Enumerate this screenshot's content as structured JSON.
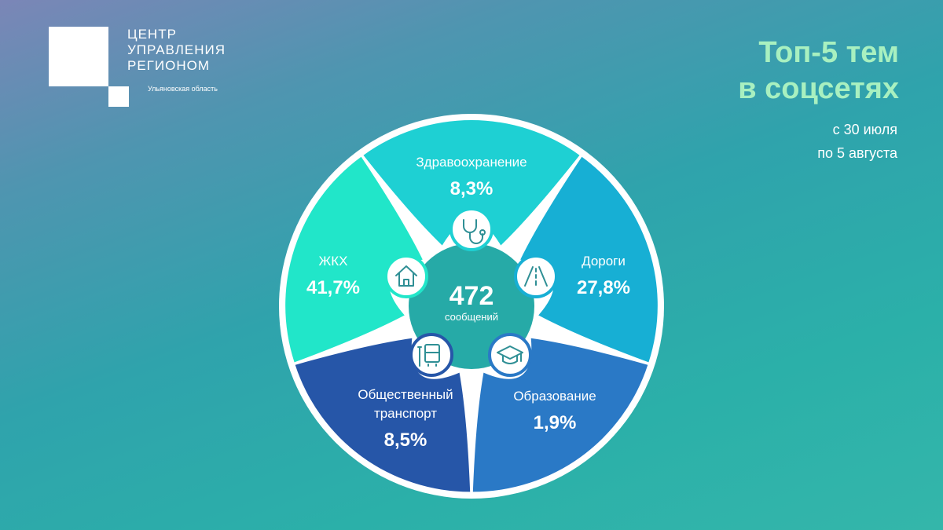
{
  "logo": {
    "line1": "ЦЕНТР",
    "line2": "УПРАВЛЕНИЯ",
    "line3": "РЕГИОНОМ",
    "region": "Ульяновская область"
  },
  "header": {
    "title_line1": "Топ-5 тем",
    "title_line2": "в соцсетях",
    "period_line1": "с 30 июля",
    "period_line2": "по 5 августа"
  },
  "chart_data": {
    "type": "pie",
    "total_value": "472",
    "total_label": "сообщений",
    "slices": [
      {
        "label_lines": [
          "Здравоохранение"
        ],
        "value": "8,3%",
        "icon": "stethoscope-icon",
        "color": "#1ed0d3"
      },
      {
        "label_lines": [
          "Дороги"
        ],
        "value": "27,8%",
        "icon": "road-icon",
        "color": "#17afd4"
      },
      {
        "label_lines": [
          "Образование"
        ],
        "value": "1,9%",
        "icon": "graduation-cap-icon",
        "color": "#2a79c6"
      },
      {
        "label_lines": [
          "Общественный",
          "транспорт"
        ],
        "value": "8,5%",
        "icon": "bus-icon",
        "color": "#2656a8"
      },
      {
        "label_lines": [
          "ЖКХ"
        ],
        "value": "41,7%",
        "icon": "house-icon",
        "color": "#21e6c9"
      }
    ]
  }
}
